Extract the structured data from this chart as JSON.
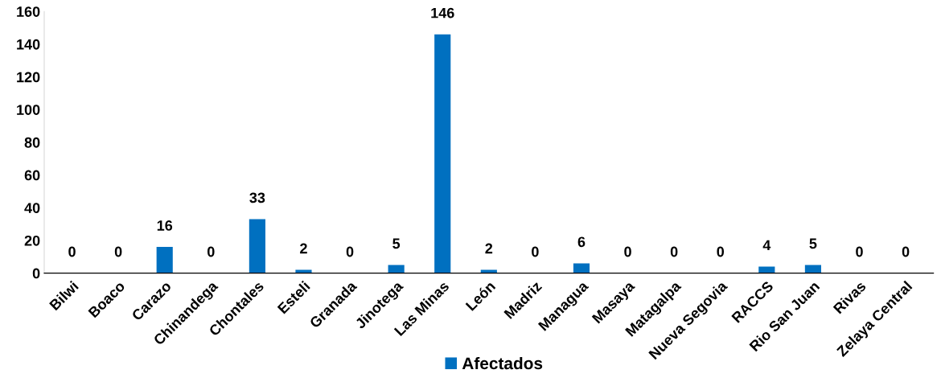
{
  "chart_data": {
    "type": "bar",
    "categories": [
      "Bilwi",
      "Boaco",
      "Carazo",
      "Chinandega",
      "Chontales",
      "Esteli",
      "Granada",
      "Jinotega",
      "Las Minas",
      "León",
      "Madriz",
      "Managua",
      "Masaya",
      "Matagalpa",
      "Nueva Segovia",
      "RACCS",
      "Rio San Juan",
      "Rivas",
      "Zelaya Central"
    ],
    "series": [
      {
        "name": "Afectados",
        "color": "#0070c0",
        "values": [
          0,
          0,
          16,
          0,
          33,
          2,
          0,
          5,
          146,
          2,
          0,
          6,
          0,
          0,
          0,
          4,
          5,
          0,
          0
        ]
      }
    ],
    "ylim": [
      0,
      160
    ],
    "yticks": [
      0,
      20,
      40,
      60,
      80,
      100,
      120,
      140,
      160
    ],
    "data_labels": true,
    "grid": false,
    "legend": "bottom"
  }
}
